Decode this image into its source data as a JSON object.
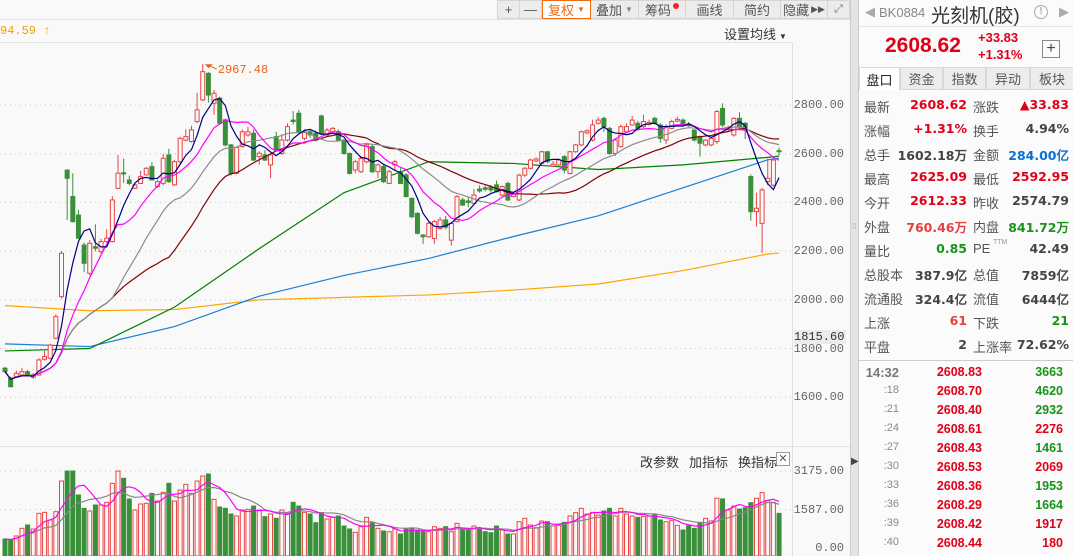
{
  "toolbar": {
    "buttons": [
      {
        "label": "+",
        "icon": "plus-icon"
      },
      {
        "label": "—",
        "icon": "minus-icon"
      },
      {
        "label": "复权",
        "active": true,
        "dropdown": true
      },
      {
        "label": "叠加",
        "dropdown": true
      },
      {
        "label": "筹码",
        "badge": "red-dot"
      },
      {
        "label": "画线"
      },
      {
        "label": "简约"
      },
      {
        "label": "隐藏",
        "icon": "double-chevron-right-icon"
      }
    ],
    "fullscreen_icon": "expand-icon"
  },
  "chart_header": {
    "ma_value": "94.59",
    "ma_arrow": "↑",
    "set_ma_label": "设置均线"
  },
  "price_chart": {
    "max_annotation": "2967.48",
    "y_axis_ticks": [
      "2800.00",
      "2600.00",
      "2400.00",
      "2200.00",
      "2000.00",
      "1800.00",
      "1600.00"
    ],
    "y_axis_values": [
      2800,
      2600,
      2400,
      2200,
      2000,
      1800,
      1600
    ],
    "cursor_price": "1815.60",
    "colors": {
      "up": "#e84545",
      "down": "#3a8f3a",
      "ma5": "#000080",
      "ma10": "#ff00ff",
      "ma20": "#8c8c8c",
      "ma30": "#800000",
      "ma_green": "#008000",
      "ma_blue": "#1a7fd6",
      "ma_orange": "#ffa500"
    }
  },
  "volume_panel": {
    "buttons": [
      "改参数",
      "加指标",
      "换指标"
    ],
    "close_icon": "close-icon",
    "y_axis_ticks": [
      "3175.00",
      "1587.00",
      "0.00"
    ],
    "y_axis_values": [
      3175,
      1587,
      0
    ]
  },
  "chart_data": {
    "type": "candlestick",
    "ohlc": [
      [
        1719,
        1705,
        1725,
        1700
      ],
      [
        1678,
        1643,
        1685,
        1640
      ],
      [
        1684,
        1698,
        1710,
        1680
      ],
      [
        1691,
        1705,
        1720,
        1688
      ],
      [
        1705,
        1691,
        1712,
        1685
      ],
      [
        1682,
        1692,
        1700,
        1675
      ],
      [
        1691,
        1753,
        1760,
        1688
      ],
      [
        1756,
        1767,
        1790,
        1750
      ],
      [
        1760,
        1814,
        1820,
        1755
      ],
      [
        1842,
        1931,
        1940,
        1838
      ],
      [
        2013,
        2191,
        2200,
        2005
      ],
      [
        2533,
        2499,
        2535,
        2328
      ],
      [
        2424,
        2321,
        2520,
        2318
      ],
      [
        2348,
        2253,
        2370,
        2250
      ],
      [
        2225,
        2150,
        2235,
        2115
      ],
      [
        2109,
        2232,
        2245,
        2100
      ],
      [
        2218,
        2212,
        2310,
        2200
      ],
      [
        2198,
        2239,
        2250,
        2190
      ],
      [
        2239,
        2253,
        2290,
        2235
      ],
      [
        2239,
        2410,
        2425,
        2235
      ],
      [
        2458,
        2520,
        2595,
        2455
      ],
      [
        2522,
        2517,
        2580,
        2480
      ],
      [
        2492,
        2478,
        2510,
        2470
      ],
      [
        2458,
        2472,
        2480,
        2455
      ],
      [
        2478,
        2506,
        2530,
        2475
      ],
      [
        2513,
        2540,
        2545,
        2510
      ],
      [
        2547,
        2492,
        2565,
        2490
      ],
      [
        2465,
        2485,
        2495,
        2460
      ],
      [
        2478,
        2581,
        2600,
        2470
      ],
      [
        2595,
        2485,
        2620,
        2480
      ],
      [
        2472,
        2567,
        2575,
        2468
      ],
      [
        2567,
        2663,
        2670,
        2560
      ],
      [
        2656,
        2670,
        2700,
        2650
      ],
      [
        2650,
        2698,
        2715,
        2645
      ],
      [
        2732,
        2780,
        2850,
        2725
      ],
      [
        2821,
        2937,
        2967.48,
        2815
      ],
      [
        2930,
        2841,
        2935,
        2810
      ],
      [
        2807,
        2848,
        2862,
        2760
      ],
      [
        2828,
        2725,
        2835,
        2720
      ],
      [
        2739,
        2636,
        2745,
        2630
      ],
      [
        2636,
        2520,
        2640,
        2510
      ],
      [
        2520,
        2626,
        2630,
        2515
      ],
      [
        2630,
        2690,
        2700,
        2625
      ],
      [
        2677,
        2690,
        2710,
        2670
      ],
      [
        2684,
        2574,
        2700,
        2570
      ],
      [
        2588,
        2602,
        2610,
        2555
      ],
      [
        2595,
        2574,
        2615,
        2570
      ],
      [
        2554,
        2595,
        2600,
        2499
      ],
      [
        2670,
        2615,
        2690,
        2610
      ],
      [
        2601,
        2656,
        2680,
        2595
      ],
      [
        2656,
        2711,
        2725,
        2650
      ],
      [
        2738,
        2732,
        2775,
        2720
      ],
      [
        2766,
        2690,
        2780,
        2685
      ],
      [
        2663,
        2690,
        2700,
        2655
      ],
      [
        2690,
        2677,
        2700,
        2665
      ],
      [
        2684,
        2656,
        2695,
        2650
      ],
      [
        2755,
        2684,
        2760,
        2680
      ],
      [
        2677,
        2697,
        2705,
        2670
      ],
      [
        2690,
        2704,
        2710,
        2685
      ],
      [
        2690,
        2656,
        2700,
        2650
      ],
      [
        2656,
        2601,
        2660,
        2595
      ],
      [
        2601,
        2519,
        2605,
        2515
      ],
      [
        2533,
        2567,
        2575,
        2520
      ],
      [
        2526,
        2581,
        2590,
        2520
      ],
      [
        2567,
        2636,
        2645,
        2560
      ],
      [
        2629,
        2526,
        2640,
        2520
      ],
      [
        2526,
        2554,
        2560,
        2500
      ],
      [
        2547,
        2485,
        2555,
        2480
      ],
      [
        2478,
        2526,
        2535,
        2475
      ],
      [
        2554,
        2567,
        2575,
        2530
      ],
      [
        2526,
        2478,
        2540,
        2475
      ],
      [
        2513,
        2424,
        2520,
        2420
      ],
      [
        2417,
        2341,
        2420,
        2335
      ],
      [
        2355,
        2273,
        2360,
        2268
      ],
      [
        2266,
        2259,
        2270,
        2230
      ],
      [
        2259,
        2314,
        2320,
        2255
      ],
      [
        2252,
        2321,
        2328,
        2230
      ],
      [
        2293,
        2328,
        2340,
        2288
      ],
      [
        2328,
        2298,
        2345,
        2290
      ],
      [
        2245,
        2314,
        2320,
        2222
      ],
      [
        2321,
        2424,
        2430,
        2318
      ],
      [
        2410,
        2389,
        2420,
        2385
      ],
      [
        2406,
        2400,
        2420,
        2380
      ],
      [
        2396,
        2430,
        2455,
        2390
      ],
      [
        2455,
        2447,
        2470,
        2440
      ],
      [
        2460,
        2454,
        2470,
        2445
      ],
      [
        2462,
        2451,
        2472,
        2440
      ],
      [
        2472,
        2444,
        2490,
        2440
      ],
      [
        2430,
        2465,
        2470,
        2425
      ],
      [
        2478,
        2410,
        2485,
        2405
      ],
      [
        2424,
        2437,
        2440,
        2420
      ],
      [
        2410,
        2512,
        2518,
        2405
      ],
      [
        2512,
        2540,
        2545,
        2505
      ],
      [
        2540,
        2574,
        2580,
        2535
      ],
      [
        2570,
        2578,
        2585,
        2565
      ],
      [
        2560,
        2608,
        2612,
        2555
      ],
      [
        2608,
        2567,
        2612,
        2560
      ],
      [
        2549,
        2557,
        2570,
        2545
      ],
      [
        2554,
        2574,
        2580,
        2550
      ],
      [
        2588,
        2533,
        2595,
        2520
      ],
      [
        2519,
        2608,
        2612,
        2515
      ],
      [
        2608,
        2636,
        2640,
        2604
      ],
      [
        2636,
        2690,
        2695,
        2630
      ],
      [
        2686,
        2694,
        2700,
        2680
      ],
      [
        2656,
        2718,
        2740,
        2650
      ],
      [
        2725,
        2738,
        2750,
        2720
      ],
      [
        2745,
        2711,
        2752,
        2690
      ],
      [
        2704,
        2601,
        2710,
        2595
      ],
      [
        2601,
        2656,
        2665,
        2590
      ],
      [
        2629,
        2711,
        2720,
        2625
      ],
      [
        2690,
        2711,
        2725,
        2685
      ],
      [
        2718,
        2738,
        2755,
        2715
      ],
      [
        2725,
        2704,
        2735,
        2700
      ],
      [
        2711,
        2732,
        2760,
        2705
      ],
      [
        2721,
        2729,
        2740,
        2715
      ],
      [
        2745,
        2725,
        2752,
        2720
      ],
      [
        2718,
        2663,
        2725,
        2645
      ],
      [
        2656,
        2711,
        2720,
        2640
      ],
      [
        2704,
        2732,
        2740,
        2700
      ],
      [
        2734,
        2741,
        2752,
        2730
      ],
      [
        2738,
        2718,
        2745,
        2715
      ],
      [
        2721,
        2715,
        2730,
        2710
      ],
      [
        2697,
        2656,
        2700,
        2650
      ],
      [
        2670,
        2643,
        2675,
        2588
      ],
      [
        2636,
        2656,
        2660,
        2630
      ],
      [
        2636,
        2663,
        2670,
        2630
      ],
      [
        2650,
        2773,
        2780,
        2640
      ],
      [
        2786,
        2718,
        2807,
        2710
      ],
      [
        2700,
        2708,
        2715,
        2690
      ],
      [
        2677,
        2745,
        2750,
        2670
      ],
      [
        2745,
        2711,
        2770,
        2705
      ],
      [
        2725,
        2697,
        2730,
        2660
      ],
      [
        2506,
        2362,
        2515,
        2325
      ],
      [
        2362,
        2376,
        2440,
        2300
      ],
      [
        2314,
        2451,
        2460,
        2192
      ],
      [
        2485,
        2499,
        2580,
        2470
      ],
      [
        2471,
        2574,
        2580,
        2465
      ],
      [
        2612.33,
        2608.62,
        2625.09,
        2592.95
      ]
    ],
    "volume": [
      371,
      330,
      495,
      811,
      948,
      783,
      1429,
      1470,
      1154,
      1498,
      2762,
      3174,
      3174,
      2185,
      1635,
      1525,
      1772,
      1772,
      1882,
      2666,
      3174,
      2872,
      2020,
      1566,
      1814,
      1841,
      2253,
      1937,
      2295,
      2666,
      1937,
      2391,
      2624,
      2253,
      2762,
      2968,
      3050,
      2006,
      1690,
      1635,
      1401,
      1319,
      1566,
      1594,
      1731,
      1566,
      1292,
      1401,
      1223,
      1566,
      1429,
      1882,
      1731,
      1470,
      1401,
      1044,
      1456,
      1195,
      1264,
      1319,
      907,
      783,
      646,
      879,
      1264,
      1044,
      811,
      701,
      673,
      783,
      577,
      783,
      783,
      742,
      673,
      673,
      879,
      811,
      879,
      673,
      1017,
      742,
      742,
      907,
      811,
      673,
      632,
      907,
      742,
      577,
      577,
      1085,
      1223,
      948,
      839,
      1113,
      1085,
      907,
      948,
      1058,
      1319,
      1456,
      1635,
      1401,
      1470,
      1360,
      1525,
      1635,
      1319,
      1635,
      1401,
      1319,
      1264,
      1292,
      1319,
      1360,
      1154,
      1085,
      1127,
      934,
      742,
      920,
      810,
      1058,
      1223,
      1113,
      2052,
      2025,
      1566,
      1731,
      1608,
      1662,
      1868,
      2052,
      2286,
      1957,
      1882,
      1429
    ],
    "ma_long": {
      "sample_index": [
        0,
        15,
        30,
        45,
        60,
        75,
        90,
        105,
        120,
        135,
        137
      ],
      "green": [
        1790,
        1800,
        1970,
        2210,
        2440,
        2567,
        2560,
        2535,
        2554,
        2585,
        2590
      ],
      "blue": [
        1819,
        1808,
        1890,
        2015,
        2100,
        2170,
        2260,
        2345,
        2460,
        2575,
        2582
      ],
      "orange": [
        1976,
        1955,
        1960,
        2000,
        2010,
        2020,
        2040,
        2065,
        2120,
        2188,
        2192
      ]
    },
    "ma_periods": [
      5,
      10,
      20,
      30
    ],
    "volume_ma_periods": [
      5,
      10
    ],
    "price_range": [
      1600,
      2800
    ],
    "volume_range": [
      0,
      3175
    ],
    "grid": "dotted"
  },
  "quote": {
    "code": "BK0884",
    "name": "光刻机(胶)",
    "price": "2608.62",
    "change": "+33.83",
    "change_pct": "+1.31%",
    "tabs": [
      "盘口",
      "资金",
      "指数",
      "异动",
      "板块"
    ],
    "rows": [
      [
        {
          "l": "最新",
          "v": "2608.62",
          "c": "red"
        },
        {
          "l": "涨跌",
          "v": "▲33.83",
          "c": "red"
        }
      ],
      [
        {
          "l": "涨幅",
          "v": "+1.31%",
          "c": "red"
        },
        {
          "l": "换手",
          "v": "4.94%",
          "c": "dark"
        }
      ],
      [
        {
          "l": "总手",
          "v": "1602.18万",
          "c": "dark"
        },
        {
          "l": "金额",
          "v": "284.00亿",
          "c": "blue"
        }
      ],
      [
        {
          "l": "最高",
          "v": "2625.09",
          "c": "red"
        },
        {
          "l": "最低",
          "v": "2592.95",
          "c": "red"
        }
      ],
      [
        {
          "l": "今开",
          "v": "2612.33",
          "c": "red"
        },
        {
          "l": "昨收",
          "v": "2574.79",
          "c": "dark"
        }
      ],
      [
        {
          "l": "外盘",
          "v": "760.46万",
          "c": "lred"
        },
        {
          "l": "内盘",
          "v": "841.72万",
          "c": "green"
        }
      ],
      [
        {
          "l": "量比",
          "v": "0.85",
          "c": "green"
        },
        {
          "l": "PE",
          "sup": "TTM",
          "v": "42.49",
          "c": "dark"
        }
      ],
      [
        {
          "l": "总股本",
          "v": "387.9亿",
          "c": "dark"
        },
        {
          "l": "总值",
          "v": "7859亿",
          "c": "dark"
        }
      ],
      [
        {
          "l": "流通股",
          "v": "324.4亿",
          "c": "dark"
        },
        {
          "l": "流值",
          "v": "6444亿",
          "c": "dark"
        }
      ],
      [
        {
          "l": "上涨",
          "v": "61",
          "c": "lred"
        },
        {
          "l": "下跌",
          "v": "21",
          "c": "green"
        }
      ],
      [
        {
          "l": "平盘",
          "v": "2",
          "c": "dark"
        },
        {
          "l": "上涨率",
          "v": "72.62%",
          "c": "dark"
        }
      ]
    ],
    "ticks": [
      {
        "t": "14:32",
        "p": "2608.83",
        "v": "3663",
        "vc": "green"
      },
      {
        "t": ":18",
        "p": "2608.70",
        "v": "4620",
        "vc": "green"
      },
      {
        "t": ":21",
        "p": "2608.40",
        "v": "2932",
        "vc": "green"
      },
      {
        "t": ":24",
        "p": "2608.61",
        "v": "2276",
        "vc": "red"
      },
      {
        "t": ":27",
        "p": "2608.43",
        "v": "1461",
        "vc": "green"
      },
      {
        "t": ":30",
        "p": "2608.53",
        "v": "2069",
        "vc": "red"
      },
      {
        "t": ":33",
        "p": "2608.36",
        "v": "1953",
        "vc": "green"
      },
      {
        "t": ":36",
        "p": "2608.29",
        "v": "1664",
        "vc": "green"
      },
      {
        "t": ":39",
        "p": "2608.42",
        "v": "1917",
        "vc": "red"
      },
      {
        "t": ":40",
        "p": "2608.44",
        "v": "180",
        "vc": "red"
      }
    ]
  }
}
